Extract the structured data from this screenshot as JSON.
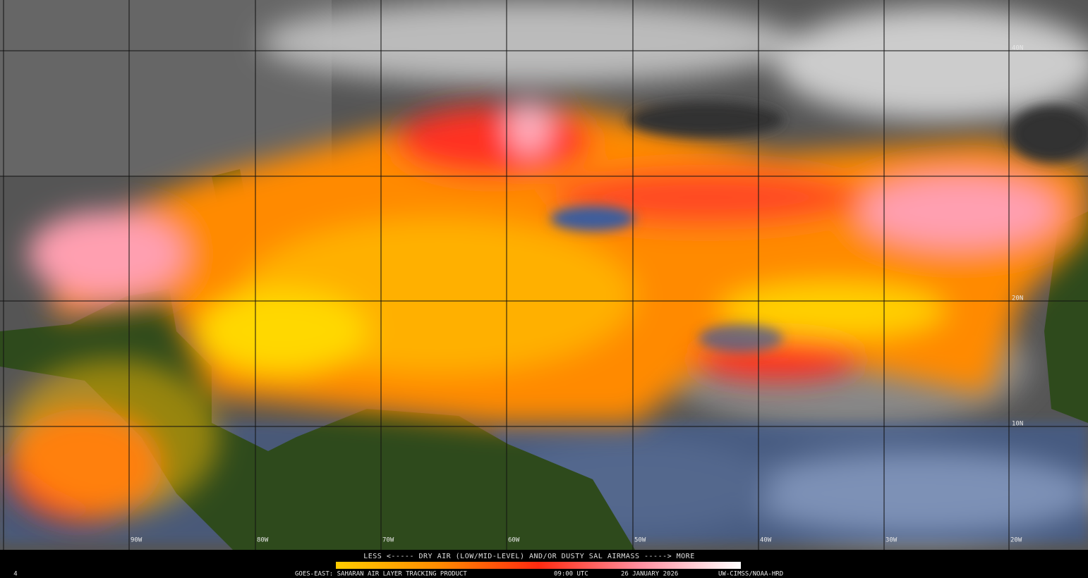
{
  "map": {
    "latitude_labels": [
      "40N",
      "20N",
      "10N"
    ],
    "longitude_labels": [
      "90W",
      "80W",
      "70W",
      "60W",
      "50W",
      "40W",
      "30W",
      "20W"
    ],
    "legend_label": "LESS <----- DRY AIR (LOW/MID-LEVEL) AND/OR DUSTY SAL AIRMASS -----> MORE",
    "footer": {
      "corner_mark": "4",
      "product": "GOES-EAST: SAHARAN AIR LAYER TRACKING PRODUCT",
      "time": "09:00 UTC",
      "date": "26 JANUARY 2026",
      "credit": "UW-CIMSS/NOAA-HRD"
    }
  }
}
